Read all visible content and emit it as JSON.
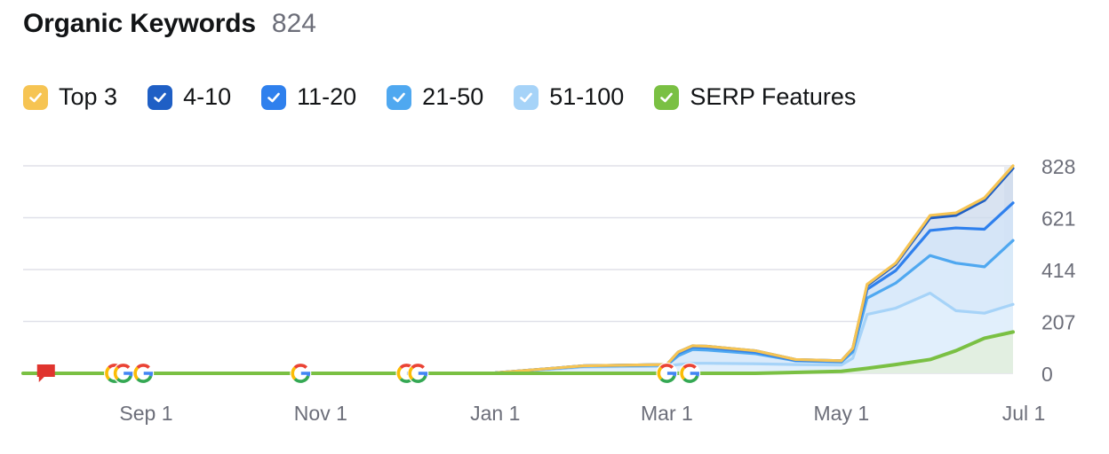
{
  "header": {
    "title": "Organic Keywords",
    "count": "824"
  },
  "legend": [
    {
      "label": "Top 3",
      "color": "#f6c453",
      "icon": "check-icon"
    },
    {
      "label": "4-10",
      "color": "#1f5fc5",
      "icon": "check-icon"
    },
    {
      "label": "11-20",
      "color": "#2f80ed",
      "icon": "check-icon"
    },
    {
      "label": "21-50",
      "color": "#4fa8f0",
      "icon": "check-icon"
    },
    {
      "label": "51-100",
      "color": "#a6d3f8",
      "icon": "check-icon"
    },
    {
      "label": "SERP Features",
      "color": "#7ac043",
      "icon": "check-icon"
    }
  ],
  "chart_data": {
    "type": "area",
    "x_ticks": [
      "Sep 1",
      "Nov 1",
      "Jan 1",
      "Mar 1",
      "May 1",
      "Jul 1"
    ],
    "y_ticks": [
      "828",
      "621",
      "414",
      "207",
      "0"
    ],
    "ylim": [
      0,
      828
    ],
    "x_range": [
      "Jul 20",
      "Jun 30"
    ],
    "grid": true,
    "y_axis_position": "right",
    "series": [
      {
        "name": "Top 3",
        "color": "#f6c453",
        "x": [
          "Jul 20",
          "Dec 20",
          "Jan 1",
          "Feb 1",
          "Mar 1",
          "Mar 5",
          "Mar 10",
          "Mar 15",
          "Apr 1",
          "Apr 15",
          "May 1",
          "May 5",
          "May 10",
          "May 20",
          "Jun 1",
          "Jun 10",
          "Jun 20",
          "Jun 30"
        ],
        "values": [
          0,
          0,
          2,
          30,
          35,
          85,
          110,
          108,
          90,
          55,
          50,
          100,
          355,
          440,
          630,
          640,
          700,
          828
        ]
      },
      {
        "name": "4-10",
        "color": "#1f5fc5",
        "x": [
          "Jul 20",
          "Dec 20",
          "Jan 1",
          "Feb 1",
          "Mar 1",
          "Mar 5",
          "Mar 10",
          "Mar 15",
          "Apr 1",
          "Apr 15",
          "May 1",
          "May 5",
          "May 10",
          "May 20",
          "Jun 1",
          "Jun 10",
          "Jun 20",
          "Jun 30"
        ],
        "values": [
          0,
          0,
          2,
          30,
          35,
          85,
          110,
          108,
          90,
          55,
          50,
          100,
          350,
          435,
          620,
          630,
          690,
          818
        ]
      },
      {
        "name": "11-20",
        "color": "#2f80ed",
        "x": [
          "Jul 20",
          "Dec 20",
          "Jan 1",
          "Feb 1",
          "Mar 1",
          "Mar 5",
          "Mar 10",
          "Mar 15",
          "Apr 1",
          "Apr 15",
          "May 1",
          "May 5",
          "May 10",
          "May 20",
          "Jun 1",
          "Jun 10",
          "Jun 20",
          "Jun 30"
        ],
        "values": [
          0,
          0,
          2,
          30,
          35,
          80,
          105,
          103,
          85,
          52,
          48,
          95,
          335,
          410,
          570,
          580,
          575,
          680
        ]
      },
      {
        "name": "21-50",
        "color": "#4fa8f0",
        "x": [
          "Jul 20",
          "Dec 20",
          "Jan 1",
          "Feb 1",
          "Mar 1",
          "Mar 5",
          "Mar 10",
          "Mar 15",
          "Apr 1",
          "Apr 15",
          "May 1",
          "May 5",
          "May 10",
          "May 20",
          "Jun 1",
          "Jun 10",
          "Jun 20",
          "Jun 30"
        ],
        "values": [
          0,
          0,
          2,
          28,
          32,
          70,
          95,
          93,
          78,
          50,
          45,
          85,
          300,
          360,
          470,
          440,
          425,
          530
        ]
      },
      {
        "name": "51-100",
        "color": "#a6d3f8",
        "x": [
          "Jul 20",
          "Dec 20",
          "Jan 1",
          "Feb 1",
          "Mar 1",
          "Mar 5",
          "Mar 10",
          "Mar 15",
          "Apr 1",
          "Apr 15",
          "May 1",
          "May 5",
          "May 10",
          "May 20",
          "Jun 1",
          "Jun 10",
          "Jun 20",
          "Jun 30"
        ],
        "values": [
          0,
          0,
          2,
          25,
          28,
          35,
          40,
          40,
          38,
          35,
          33,
          60,
          235,
          260,
          320,
          250,
          240,
          275
        ]
      },
      {
        "name": "SERP Features",
        "color": "#7ac043",
        "x": [
          "Jul 20",
          "Apr 1",
          "May 1",
          "May 10",
          "May 20",
          "Jun 1",
          "Jun 10",
          "Jun 20",
          "Jun 30"
        ],
        "values": [
          0,
          0,
          8,
          20,
          35,
          55,
          90,
          140,
          165
        ]
      }
    ],
    "annotations": [
      {
        "kind": "flag",
        "date": "Jul 28"
      },
      {
        "kind": "google",
        "date": "Aug 21"
      },
      {
        "kind": "google",
        "date": "Aug 24"
      },
      {
        "kind": "google",
        "date": "Aug 31"
      },
      {
        "kind": "google",
        "date": "Oct 25"
      },
      {
        "kind": "google",
        "date": "Dec 1"
      },
      {
        "kind": "google",
        "date": "Dec 5"
      },
      {
        "kind": "google",
        "date": "Mar 1"
      },
      {
        "kind": "google",
        "date": "Mar 9"
      }
    ]
  }
}
